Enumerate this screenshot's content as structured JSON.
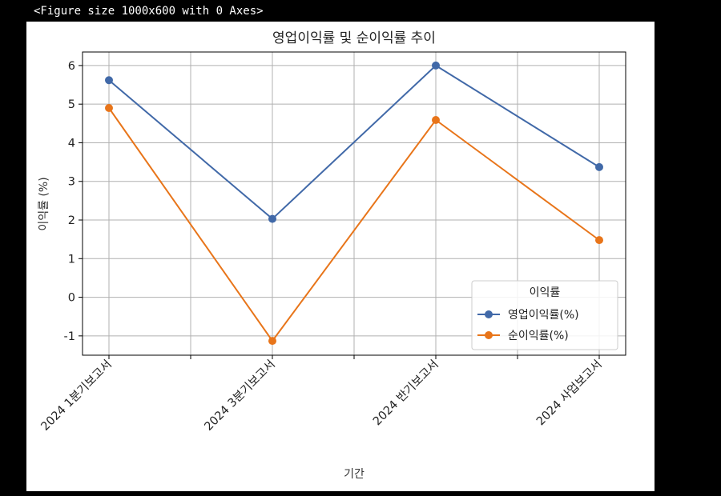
{
  "header": {
    "text": "<Figure size 1000x600 with 0 Axes>"
  },
  "chart_data": {
    "type": "line",
    "title": "영업이익률 및 순이익률 추이",
    "xlabel": "기간",
    "ylabel": "이익률 (%)",
    "categories": [
      "2024 1분기보고서",
      "2024 3분기보고서",
      "2024 반기보고서",
      "2024 사업보고서"
    ],
    "ylim": [
      -1.5,
      6.35
    ],
    "yticks": [
      -1,
      0,
      1,
      2,
      3,
      4,
      5,
      6
    ],
    "grid": true,
    "legend": {
      "title": "이익률",
      "placement": "lower-right"
    },
    "series": [
      {
        "name": "영업이익률(%)",
        "color": "#4169a8",
        "values": [
          5.62,
          2.03,
          6.0,
          3.37
        ]
      },
      {
        "name": "순이익률(%)",
        "color": "#e8751a",
        "values": [
          4.9,
          -1.13,
          4.59,
          1.48
        ]
      }
    ]
  }
}
